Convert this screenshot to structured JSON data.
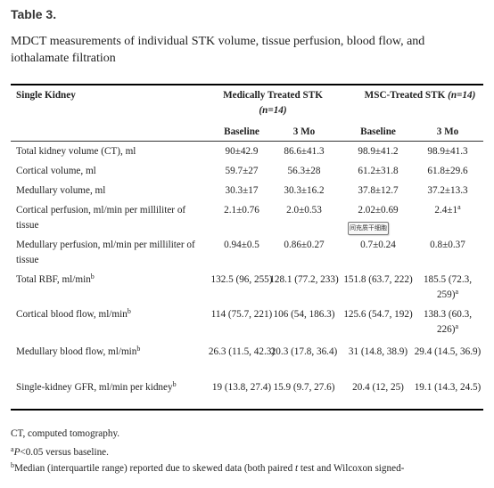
{
  "table_label": "Table 3.",
  "caption": "MDCT measurements of individual STK volume, tissue perfusion, blood flow, and iothalamate filtration",
  "headers": {
    "single_kidney": "Single Kidney",
    "medical_group": "Medically Treated STK",
    "medical_n": "(n=14)",
    "msc_group": "MSC-Treated STK",
    "msc_n": "(n=14)",
    "baseline": "Baseline",
    "three_mo": "3 Mo"
  },
  "rows": [
    {
      "label": "Total kidney volume (CT), ml",
      "label_sup": "",
      "mt_base": "90±42.9",
      "mt_3mo": "86.6±41.3",
      "msc_base": "98.9±41.2",
      "msc_3mo": "98.9±41.3",
      "msc_3mo_sup": ""
    },
    {
      "label": "Cortical volume, ml",
      "label_sup": "",
      "mt_base": "59.7±27",
      "mt_3mo": "56.3±28",
      "msc_base": "61.2±31.8",
      "msc_3mo": "61.8±29.6",
      "msc_3mo_sup": ""
    },
    {
      "label": "Medullary volume, ml",
      "label_sup": "",
      "mt_base": "30.3±17",
      "mt_3mo": "30.3±16.2",
      "msc_base": "37.8±12.7",
      "msc_3mo": "37.2±13.3",
      "msc_3mo_sup": ""
    },
    {
      "label": "Cortical perfusion, ml/min per milliliter of tissue",
      "label_sup": "",
      "mt_base": "2.1±0.76",
      "mt_3mo": "2.0±0.53",
      "msc_base": "2.02±0.69",
      "msc_3mo": "2.4±1",
      "msc_3mo_sup": "a"
    },
    {
      "label": "Medullary perfusion, ml/min per milliliter of tissue",
      "label_sup": "",
      "mt_base": "0.94±0.5",
      "mt_3mo": "0.86±0.27",
      "msc_base": "0.7±0.24",
      "msc_3mo": "0.8±0.37",
      "msc_3mo_sup": ""
    },
    {
      "label": "Total RBF, ml/min",
      "label_sup": "b",
      "mt_base": "132.5 (96, 255)",
      "mt_3mo": "128.1 (77.2, 233)",
      "msc_base": "151.8 (63.7, 222)",
      "msc_3mo": "185.5 (72.3, 259)",
      "msc_3mo_sup": "a"
    },
    {
      "label": "Cortical blood flow, ml/min",
      "label_sup": "b",
      "mt_base": "114 (75.7, 221)",
      "mt_3mo": "106 (54, 186.3)",
      "msc_base": "125.6 (54.7, 192)",
      "msc_3mo": "138.3 (60.3, 226)",
      "msc_3mo_sup": "a"
    },
    {
      "label": "Medullary blood flow, ml/min",
      "label_sup": "b",
      "mt_base": "26.3 (11.5, 42.3)",
      "mt_3mo": "20.3 (17.8, 36.4)",
      "msc_base": "31 (14.8, 38.9)",
      "msc_3mo": "29.4 (14.5, 36.9)",
      "msc_3mo_sup": ""
    },
    {
      "label": "Single-kidney GFR, ml/min per kidney",
      "label_sup": "b",
      "mt_base": "19 (13.8, 27.4)",
      "mt_3mo": "15.9 (9.7, 27.6)",
      "msc_base": "20.4 (12, 25)",
      "msc_3mo": "19.1 (14.3, 24.5)",
      "msc_3mo_sup": ""
    }
  ],
  "tooltip": "间充质干细胞",
  "footnotes": {
    "ct": "CT, computed tomography.",
    "a_mark": "a",
    "a_p": "P",
    "a_text": "<0.05 versus baseline.",
    "b_mark": "b",
    "b_text_1": "Median (interquartile range) reported due to skewed data (both paired ",
    "b_t": "t",
    "b_text_2": " test and Wilcoxon signed-"
  }
}
